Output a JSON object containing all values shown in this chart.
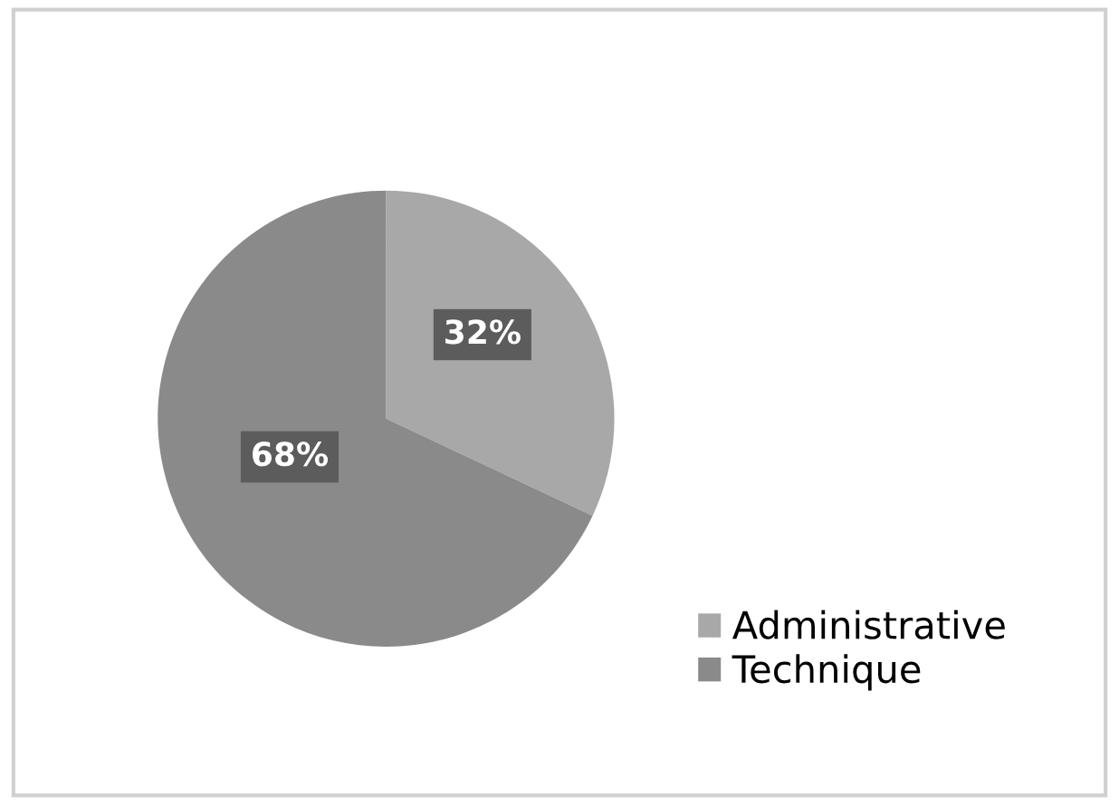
{
  "chart_data": {
    "type": "pie",
    "categories": [
      "Administrative",
      "Technique"
    ],
    "values": [
      32,
      68
    ],
    "colors": [
      "#a8a8a8",
      "#8a8a8a"
    ],
    "value_labels": [
      "32%",
      "68%"
    ],
    "legend": "bottom right"
  }
}
